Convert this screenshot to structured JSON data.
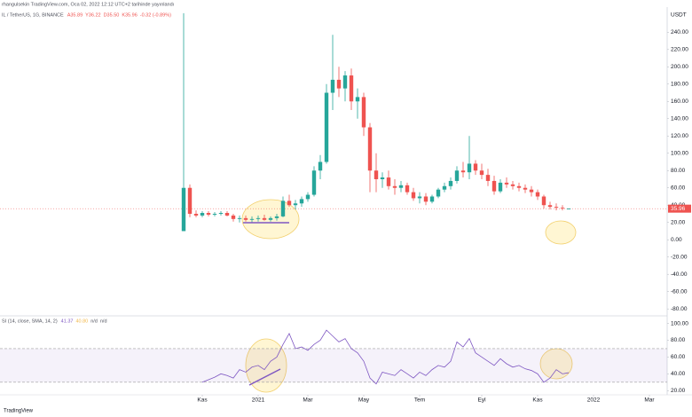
{
  "header": {
    "publisher": "rhangulsekin TradingView.com, Oca 02, 2022 12:12 UTC+2 tarihinde yayınlandı",
    "symbol": "IL / TetherUS, 1G, BINANCE",
    "ohlc": [
      "A35.89",
      "Y36.22",
      "D35.50",
      "K35.96",
      "-0.32 (-0.89%)"
    ],
    "brand": "TradingView"
  },
  "chart_data": [
    {
      "type": "candlestick",
      "unit": "USDT",
      "last_label": "35.96",
      "up_color": "#26a69a",
      "down_color": "#ef5350",
      "grid": false,
      "categories": [
        null,
        null,
        null,
        "Kas",
        null,
        null,
        null,
        null,
        null,
        null,
        null,
        null,
        "2021",
        null,
        null,
        null,
        null,
        null,
        null,
        null,
        "Mar",
        null,
        null,
        null,
        null,
        null,
        null,
        null,
        null,
        "May",
        null,
        null,
        null,
        null,
        null,
        null,
        null,
        null,
        "Tem",
        null,
        null,
        null,
        null,
        null,
        null,
        null,
        null,
        null,
        "Eyl",
        null,
        null,
        null,
        null,
        null,
        null,
        null,
        null,
        "Kas",
        null,
        null,
        null,
        null,
        null,
        null,
        null,
        null,
        "2022",
        null,
        null,
        null,
        null,
        null,
        null,
        null,
        null,
        "Mar",
        null,
        null
      ],
      "open": [
        10,
        60,
        30,
        28,
        31,
        29,
        30,
        31,
        28,
        24,
        25,
        23,
        24,
        25,
        23,
        25,
        27,
        45,
        40,
        42,
        47,
        52,
        80,
        90,
        170,
        185,
        175,
        190,
        160,
        165,
        130,
        80,
        70,
        72,
        62,
        60,
        63,
        55,
        48,
        50,
        44,
        50,
        58,
        62,
        68,
        80,
        78,
        88,
        80,
        75,
        68,
        56,
        66,
        64,
        62,
        60,
        58,
        55,
        50,
        40,
        38,
        37,
        35.89,
        null,
        null,
        null,
        null,
        null,
        null,
        null,
        null,
        null,
        null,
        null,
        null,
        null,
        null,
        null
      ],
      "high": [
        262,
        64,
        34,
        33,
        33,
        32,
        33,
        33,
        30,
        28,
        28,
        27,
        28,
        29,
        27,
        30,
        50,
        52,
        46,
        50,
        55,
        85,
        98,
        180,
        237,
        200,
        195,
        198,
        175,
        170,
        135,
        100,
        78,
        80,
        70,
        68,
        66,
        60,
        55,
        54,
        52,
        60,
        66,
        72,
        85,
        90,
        120,
        92,
        88,
        82,
        74,
        70,
        72,
        68,
        66,
        64,
        62,
        58,
        52,
        44,
        42,
        40,
        36.22,
        null,
        null,
        null,
        null,
        null,
        null,
        null,
        null,
        null,
        null,
        null,
        null,
        null,
        null,
        null
      ],
      "low": [
        10,
        26,
        26,
        26,
        27,
        27,
        28,
        27,
        21,
        20,
        21,
        20,
        21,
        22,
        21,
        22,
        26,
        38,
        35,
        38,
        44,
        50,
        70,
        88,
        150,
        165,
        160,
        150,
        140,
        120,
        55,
        55,
        60,
        58,
        52,
        55,
        52,
        45,
        42,
        40,
        42,
        48,
        55,
        58,
        65,
        72,
        70,
        75,
        70,
        62,
        52,
        54,
        60,
        58,
        56,
        54,
        50,
        46,
        36,
        35,
        34,
        34,
        35.5,
        null,
        null,
        null,
        null,
        null,
        null,
        null,
        null,
        null,
        null,
        null,
        null,
        null,
        null,
        null
      ],
      "close": [
        60,
        30,
        28,
        31,
        29,
        30,
        31,
        28,
        24,
        25,
        23,
        24,
        25,
        23,
        25,
        27,
        45,
        40,
        42,
        47,
        52,
        80,
        90,
        170,
        185,
        175,
        190,
        160,
        165,
        130,
        80,
        70,
        72,
        62,
        60,
        63,
        55,
        48,
        50,
        44,
        50,
        58,
        62,
        68,
        80,
        78,
        88,
        80,
        75,
        68,
        56,
        66,
        64,
        62,
        60,
        58,
        55,
        50,
        40,
        38,
        37,
        36.28,
        35.96,
        null,
        null,
        null,
        null,
        null,
        null,
        null,
        null,
        null,
        null,
        null,
        null,
        null,
        null,
        null
      ],
      "ylim": [
        -87,
        267
      ],
      "yticks": [
        {
          "value": -80,
          "label": "-80.00"
        },
        {
          "value": -60,
          "label": "-60.00"
        },
        {
          "value": -40,
          "label": "-40.00"
        },
        {
          "value": -20,
          "label": "-20.00"
        },
        {
          "value": 0,
          "label": "0.00"
        },
        {
          "value": 20,
          "label": "20.00"
        },
        {
          "value": 40,
          "label": "40.00"
        },
        {
          "value": 60,
          "label": "60.00"
        },
        {
          "value": 80,
          "label": "80.00"
        },
        {
          "value": 100,
          "label": "100.00"
        },
        {
          "value": 120,
          "label": "120.00"
        },
        {
          "value": 140,
          "label": "140.00"
        },
        {
          "value": 160,
          "label": "160.00"
        },
        {
          "value": 180,
          "label": "180.00"
        },
        {
          "value": 200,
          "label": "200.00"
        },
        {
          "value": 220,
          "label": "220.00"
        },
        {
          "value": 240,
          "label": "240.00"
        }
      ]
    },
    {
      "type": "line",
      "title": "SI (14, close, SMA, 14, 2)",
      "readouts": [
        "41.37",
        "40.80",
        "n/d",
        "n/d"
      ],
      "color": "#7e57c2",
      "band": [
        30,
        70
      ],
      "band_color": "#7e57c2",
      "values": [
        null,
        null,
        null,
        30,
        33,
        36,
        40,
        38,
        35,
        45,
        42,
        48,
        50,
        45,
        55,
        60,
        75,
        88,
        70,
        72,
        68,
        75,
        80,
        92,
        85,
        78,
        82,
        70,
        65,
        55,
        35,
        28,
        42,
        40,
        38,
        45,
        40,
        35,
        42,
        38,
        45,
        50,
        48,
        55,
        78,
        72,
        82,
        65,
        60,
        55,
        50,
        58,
        52,
        48,
        50,
        46,
        44,
        40,
        30,
        35,
        45,
        40,
        41.37,
        null,
        null,
        null,
        null,
        null,
        null,
        null,
        null,
        null,
        null,
        null,
        null,
        null,
        null,
        null
      ],
      "ylim": [
        15,
        108
      ],
      "yticks": [
        {
          "value": 20,
          "label": "20.00"
        },
        {
          "value": 40,
          "label": "40.00"
        },
        {
          "value": 60,
          "label": "60.00"
        },
        {
          "value": 80,
          "label": "80.00"
        },
        {
          "value": 100,
          "label": "100.00"
        }
      ]
    }
  ]
}
